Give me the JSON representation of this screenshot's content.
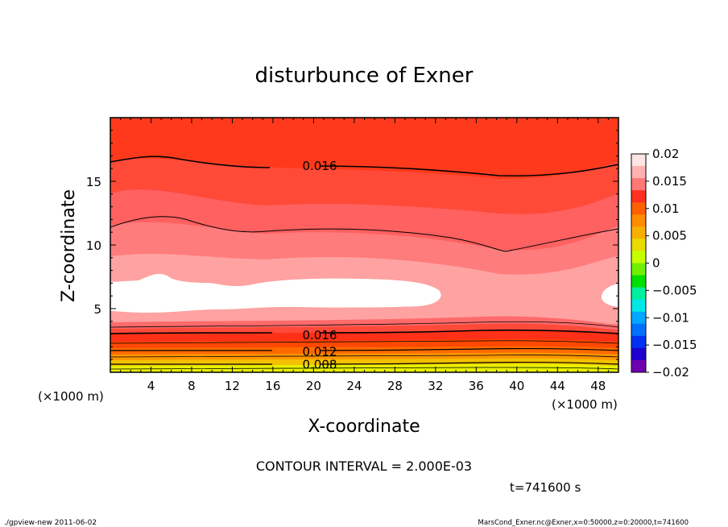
{
  "chart_data": {
    "type": "contour",
    "title": "disturbunce of Exner",
    "xlabel": "X-coordinate",
    "ylabel": "Z-coordinate",
    "x_unit": "(×1000 m)",
    "y_unit": "(×1000 m)",
    "xlim": [
      0,
      50
    ],
    "ylim": [
      0,
      20
    ],
    "x_ticks": [
      4,
      8,
      12,
      16,
      20,
      24,
      28,
      32,
      36,
      40,
      44,
      48
    ],
    "y_ticks": [
      5,
      10,
      15
    ],
    "contour_labels": [
      {
        "text": "0.016",
        "x": 18.3,
        "z": 16.2
      },
      {
        "text": "0.016",
        "x": 18.3,
        "z": 2.9
      },
      {
        "text": "0.012",
        "x": 18.3,
        "z": 1.6
      },
      {
        "text": "0.008",
        "x": 18.3,
        "z": 0.6
      }
    ],
    "colorbar": {
      "ticks": [
        "0.02",
        "0.015",
        "0.01",
        "0.005",
        "0",
        "−0.005",
        "−0.01",
        "−0.015",
        "−0.02"
      ]
    },
    "contour_interval_text": "CONTOUR INTERVAL = 2.000E-03",
    "time_text": "t=741600 s"
  },
  "footer": {
    "left": "./gpview-new   2011-06-02",
    "right": "MarsCond_Exner.nc@Exner,x=0:50000,z=0:20000,t=741600"
  },
  "colors": {
    "levels": [
      "#e8fa00",
      "#f4c400",
      "#ff9a00",
      "#ff6a00",
      "#ff3a10",
      "#ff5a4a",
      "#ff7a7a",
      "#ffa0a0",
      "#ffffff"
    ],
    "colorbar": [
      "#ffe4e4",
      "#ffb0b0",
      "#ff7878",
      "#ff3020",
      "#ff6000",
      "#ff8c00",
      "#f8b000",
      "#e8dc00",
      "#c8ff00",
      "#70f000",
      "#00e000",
      "#00f0a0",
      "#00e8e8",
      "#00a8ff",
      "#0070ff",
      "#0030f0",
      "#2000d0",
      "#7000b0"
    ]
  }
}
